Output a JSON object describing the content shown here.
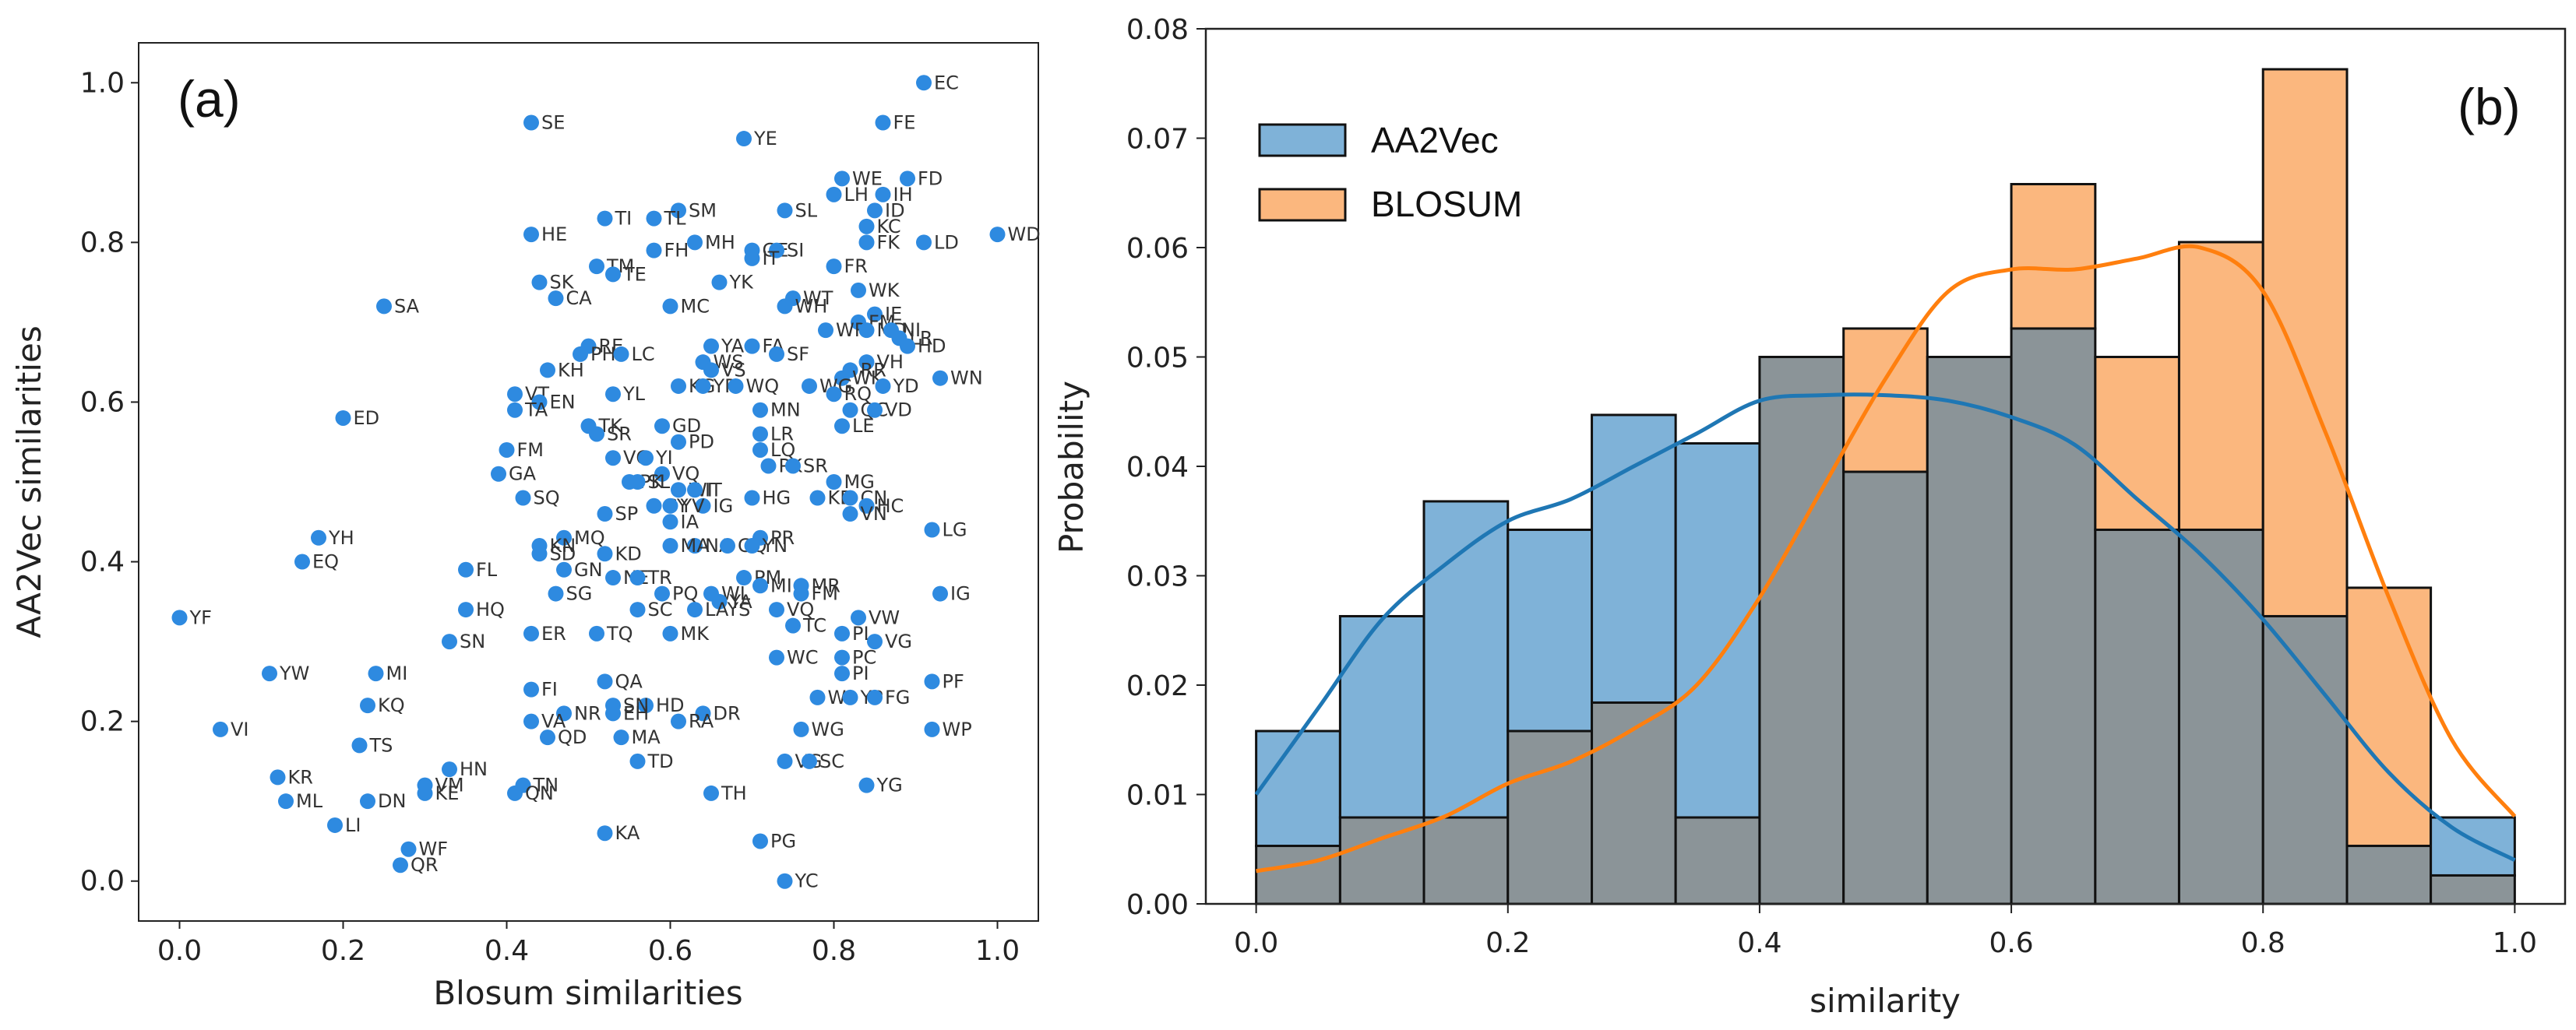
{
  "figure": {
    "panel_a_tag": "(a)",
    "panel_b_tag": "(b)"
  },
  "colors": {
    "scatter": "#2e8ae0",
    "aa2vec_fill": "#7fb2d8",
    "aa2vec_line": "#1f77b4",
    "blosum_fill": "#fbb77e",
    "blosum_line": "#ff7f0e",
    "overlap_fill": "#8b9498"
  },
  "chart_data": [
    {
      "type": "scatter",
      "title": "",
      "xlabel": "Blosum similarities",
      "ylabel": "AA2Vec similarities",
      "xlim": [
        -0.05,
        1.05
      ],
      "ylim": [
        -0.05,
        1.05
      ],
      "xticks": [
        "0.0",
        "0.2",
        "0.4",
        "0.6",
        "0.8",
        "1.0"
      ],
      "yticks": [
        "0.0",
        "0.2",
        "0.4",
        "0.6",
        "0.8",
        "1.0"
      ],
      "points": [
        {
          "label": "EC",
          "x": 0.91,
          "y": 1.0
        },
        {
          "label": "SE",
          "x": 0.43,
          "y": 0.95
        },
        {
          "label": "FE",
          "x": 0.86,
          "y": 0.95
        },
        {
          "label": "YE",
          "x": 0.69,
          "y": 0.93
        },
        {
          "label": "WE",
          "x": 0.81,
          "y": 0.88
        },
        {
          "label": "FD",
          "x": 0.89,
          "y": 0.88
        },
        {
          "label": "LH",
          "x": 0.8,
          "y": 0.86
        },
        {
          "label": "IH",
          "x": 0.86,
          "y": 0.86
        },
        {
          "label": "SL",
          "x": 0.74,
          "y": 0.84
        },
        {
          "label": "SM",
          "x": 0.61,
          "y": 0.84
        },
        {
          "label": "TI",
          "x": 0.52,
          "y": 0.83
        },
        {
          "label": "TL",
          "x": 0.58,
          "y": 0.83
        },
        {
          "label": "ID",
          "x": 0.85,
          "y": 0.84
        },
        {
          "label": "KC",
          "x": 0.84,
          "y": 0.82
        },
        {
          "label": "HE",
          "x": 0.43,
          "y": 0.81
        },
        {
          "label": "MH",
          "x": 0.63,
          "y": 0.8
        },
        {
          "label": "FK",
          "x": 0.84,
          "y": 0.8
        },
        {
          "label": "LD",
          "x": 0.91,
          "y": 0.8
        },
        {
          "label": "WD",
          "x": 1.0,
          "y": 0.81
        },
        {
          "label": "FH",
          "x": 0.58,
          "y": 0.79
        },
        {
          "label": "GE",
          "x": 0.7,
          "y": 0.79
        },
        {
          "label": "SI",
          "x": 0.73,
          "y": 0.79
        },
        {
          "label": "IT",
          "x": 0.7,
          "y": 0.78
        },
        {
          "label": "FR",
          "x": 0.8,
          "y": 0.77
        },
        {
          "label": "TM",
          "x": 0.51,
          "y": 0.77
        },
        {
          "label": "TE",
          "x": 0.53,
          "y": 0.76
        },
        {
          "label": "SK",
          "x": 0.44,
          "y": 0.75
        },
        {
          "label": "YK",
          "x": 0.66,
          "y": 0.75
        },
        {
          "label": "CA",
          "x": 0.46,
          "y": 0.73
        },
        {
          "label": "WT",
          "x": 0.75,
          "y": 0.73
        },
        {
          "label": "WK",
          "x": 0.83,
          "y": 0.74
        },
        {
          "label": "MC",
          "x": 0.6,
          "y": 0.72
        },
        {
          "label": "WH",
          "x": 0.74,
          "y": 0.72
        },
        {
          "label": "SA",
          "x": 0.25,
          "y": 0.72
        },
        {
          "label": "IE",
          "x": 0.85,
          "y": 0.71
        },
        {
          "label": "FM",
          "x": 0.83,
          "y": 0.7
        },
        {
          "label": "WR",
          "x": 0.79,
          "y": 0.69
        },
        {
          "label": "MD",
          "x": 0.84,
          "y": 0.69
        },
        {
          "label": "NI",
          "x": 0.87,
          "y": 0.69
        },
        {
          "label": "LR",
          "x": 0.88,
          "y": 0.68
        },
        {
          "label": "HD",
          "x": 0.89,
          "y": 0.67
        },
        {
          "label": "RE",
          "x": 0.5,
          "y": 0.67
        },
        {
          "label": "YA",
          "x": 0.65,
          "y": 0.67
        },
        {
          "label": "FA",
          "x": 0.7,
          "y": 0.67
        },
        {
          "label": "SF",
          "x": 0.73,
          "y": 0.66
        },
        {
          "label": "PH",
          "x": 0.49,
          "y": 0.66
        },
        {
          "label": "LC",
          "x": 0.54,
          "y": 0.66
        },
        {
          "label": "WS",
          "x": 0.64,
          "y": 0.65
        },
        {
          "label": "VS",
          "x": 0.65,
          "y": 0.64
        },
        {
          "label": "KH",
          "x": 0.45,
          "y": 0.64
        },
        {
          "label": "VH",
          "x": 0.84,
          "y": 0.65
        },
        {
          "label": "WN",
          "x": 0.93,
          "y": 0.63
        },
        {
          "label": "RR",
          "x": 0.82,
          "y": 0.64
        },
        {
          "label": "WK",
          "x": 0.81,
          "y": 0.63
        },
        {
          "label": "YD",
          "x": 0.86,
          "y": 0.62
        },
        {
          "label": "KG",
          "x": 0.61,
          "y": 0.62
        },
        {
          "label": "YR",
          "x": 0.64,
          "y": 0.62
        },
        {
          "label": "WQ",
          "x": 0.68,
          "y": 0.62
        },
        {
          "label": "WG",
          "x": 0.77,
          "y": 0.62
        },
        {
          "label": "RQ",
          "x": 0.8,
          "y": 0.61
        },
        {
          "label": "YL",
          "x": 0.53,
          "y": 0.61
        },
        {
          "label": "VT",
          "x": 0.41,
          "y": 0.61
        },
        {
          "label": "EN",
          "x": 0.44,
          "y": 0.6
        },
        {
          "label": "TA",
          "x": 0.41,
          "y": 0.59
        },
        {
          "label": "MN",
          "x": 0.71,
          "y": 0.59
        },
        {
          "label": "QC",
          "x": 0.82,
          "y": 0.59
        },
        {
          "label": "VD",
          "x": 0.85,
          "y": 0.59
        },
        {
          "label": "ED",
          "x": 0.2,
          "y": 0.58
        },
        {
          "label": "LE",
          "x": 0.81,
          "y": 0.57
        },
        {
          "label": "TK",
          "x": 0.5,
          "y": 0.57
        },
        {
          "label": "GD",
          "x": 0.59,
          "y": 0.57
        },
        {
          "label": "SR",
          "x": 0.51,
          "y": 0.56
        },
        {
          "label": "LR",
          "x": 0.71,
          "y": 0.56
        },
        {
          "label": "PD",
          "x": 0.61,
          "y": 0.55
        },
        {
          "label": "LQ",
          "x": 0.71,
          "y": 0.54
        },
        {
          "label": "FM",
          "x": 0.4,
          "y": 0.54
        },
        {
          "label": "VC",
          "x": 0.53,
          "y": 0.53
        },
        {
          "label": "YI",
          "x": 0.57,
          "y": 0.53
        },
        {
          "label": "PK",
          "x": 0.72,
          "y": 0.52
        },
        {
          "label": "SR",
          "x": 0.75,
          "y": 0.52
        },
        {
          "label": "GA",
          "x": 0.39,
          "y": 0.51
        },
        {
          "label": "VQ",
          "x": 0.59,
          "y": 0.51
        },
        {
          "label": "PK",
          "x": 0.55,
          "y": 0.5
        },
        {
          "label": "SL",
          "x": 0.56,
          "y": 0.5
        },
        {
          "label": "MG",
          "x": 0.8,
          "y": 0.5
        },
        {
          "label": "WI",
          "x": 0.61,
          "y": 0.49
        },
        {
          "label": "IT",
          "x": 0.63,
          "y": 0.49
        },
        {
          "label": "KE",
          "x": 0.78,
          "y": 0.48
        },
        {
          "label": "CN",
          "x": 0.82,
          "y": 0.48
        },
        {
          "label": "SQ",
          "x": 0.42,
          "y": 0.48
        },
        {
          "label": "HG",
          "x": 0.7,
          "y": 0.48
        },
        {
          "label": "CY",
          "x": 0.58,
          "y": 0.47
        },
        {
          "label": "IG",
          "x": 0.64,
          "y": 0.47
        },
        {
          "label": "HC",
          "x": 0.84,
          "y": 0.47
        },
        {
          "label": "YV",
          "x": 0.6,
          "y": 0.47
        },
        {
          "label": "VN",
          "x": 0.82,
          "y": 0.46
        },
        {
          "label": "SP",
          "x": 0.52,
          "y": 0.46
        },
        {
          "label": "IA",
          "x": 0.6,
          "y": 0.45
        },
        {
          "label": "LG",
          "x": 0.92,
          "y": 0.44
        },
        {
          "label": "MQ",
          "x": 0.47,
          "y": 0.43
        },
        {
          "label": "NA",
          "x": 0.63,
          "y": 0.42
        },
        {
          "label": "GQ",
          "x": 0.67,
          "y": 0.42
        },
        {
          "label": "PR",
          "x": 0.71,
          "y": 0.43
        },
        {
          "label": "YN",
          "x": 0.7,
          "y": 0.42
        },
        {
          "label": "KN",
          "x": 0.44,
          "y": 0.42
        },
        {
          "label": "MA",
          "x": 0.6,
          "y": 0.42
        },
        {
          "label": "KD",
          "x": 0.52,
          "y": 0.41
        },
        {
          "label": "SD",
          "x": 0.44,
          "y": 0.41
        },
        {
          "label": "YH",
          "x": 0.17,
          "y": 0.43
        },
        {
          "label": "EQ",
          "x": 0.15,
          "y": 0.4
        },
        {
          "label": "GN",
          "x": 0.47,
          "y": 0.39
        },
        {
          "label": "FL",
          "x": 0.35,
          "y": 0.39
        },
        {
          "label": "NE",
          "x": 0.53,
          "y": 0.38
        },
        {
          "label": "TR",
          "x": 0.56,
          "y": 0.38
        },
        {
          "label": "PM",
          "x": 0.69,
          "y": 0.38
        },
        {
          "label": "MI",
          "x": 0.71,
          "y": 0.37
        },
        {
          "label": "MR",
          "x": 0.76,
          "y": 0.37
        },
        {
          "label": "FM",
          "x": 0.76,
          "y": 0.36
        },
        {
          "label": "SG",
          "x": 0.46,
          "y": 0.36
        },
        {
          "label": "PQ",
          "x": 0.59,
          "y": 0.36
        },
        {
          "label": "WL",
          "x": 0.65,
          "y": 0.36
        },
        {
          "label": "IG",
          "x": 0.93,
          "y": 0.36
        },
        {
          "label": "YA",
          "x": 0.66,
          "y": 0.35
        },
        {
          "label": "LAYS",
          "x": 0.63,
          "y": 0.34
        },
        {
          "label": "HQ",
          "x": 0.35,
          "y": 0.34
        },
        {
          "label": "SC",
          "x": 0.56,
          "y": 0.34
        },
        {
          "label": "VQ",
          "x": 0.73,
          "y": 0.34
        },
        {
          "label": "VW",
          "x": 0.83,
          "y": 0.33
        },
        {
          "label": "YF",
          "x": 0.0,
          "y": 0.33
        },
        {
          "label": "TC",
          "x": 0.75,
          "y": 0.32
        },
        {
          "label": "PL",
          "x": 0.81,
          "y": 0.31
        },
        {
          "label": "ER",
          "x": 0.43,
          "y": 0.31
        },
        {
          "label": "TQ",
          "x": 0.51,
          "y": 0.31
        },
        {
          "label": "MK",
          "x": 0.6,
          "y": 0.31
        },
        {
          "label": "SN",
          "x": 0.33,
          "y": 0.3
        },
        {
          "label": "VG",
          "x": 0.85,
          "y": 0.3
        },
        {
          "label": "WC",
          "x": 0.73,
          "y": 0.28
        },
        {
          "label": "PC",
          "x": 0.81,
          "y": 0.28
        },
        {
          "label": "PI",
          "x": 0.81,
          "y": 0.26
        },
        {
          "label": "YW",
          "x": 0.11,
          "y": 0.26
        },
        {
          "label": "MI",
          "x": 0.24,
          "y": 0.26
        },
        {
          "label": "PF",
          "x": 0.92,
          "y": 0.25
        },
        {
          "label": "QA",
          "x": 0.52,
          "y": 0.25
        },
        {
          "label": "FI",
          "x": 0.43,
          "y": 0.24
        },
        {
          "label": "WI",
          "x": 0.78,
          "y": 0.23
        },
        {
          "label": "YP",
          "x": 0.82,
          "y": 0.23
        },
        {
          "label": "FG",
          "x": 0.85,
          "y": 0.23
        },
        {
          "label": "KQ",
          "x": 0.23,
          "y": 0.22
        },
        {
          "label": "HD",
          "x": 0.57,
          "y": 0.22
        },
        {
          "label": "SN",
          "x": 0.53,
          "y": 0.22
        },
        {
          "label": "EH",
          "x": 0.53,
          "y": 0.21
        },
        {
          "label": "DR",
          "x": 0.64,
          "y": 0.21
        },
        {
          "label": "NR",
          "x": 0.47,
          "y": 0.21
        },
        {
          "label": "VA",
          "x": 0.43,
          "y": 0.2
        },
        {
          "label": "RA",
          "x": 0.61,
          "y": 0.2
        },
        {
          "label": "VI",
          "x": 0.05,
          "y": 0.19
        },
        {
          "label": "WG",
          "x": 0.76,
          "y": 0.19
        },
        {
          "label": "WP",
          "x": 0.92,
          "y": 0.19
        },
        {
          "label": "QD",
          "x": 0.45,
          "y": 0.18
        },
        {
          "label": "MA",
          "x": 0.54,
          "y": 0.18
        },
        {
          "label": "TS",
          "x": 0.22,
          "y": 0.17
        },
        {
          "label": "TD",
          "x": 0.56,
          "y": 0.15
        },
        {
          "label": "VG",
          "x": 0.74,
          "y": 0.15
        },
        {
          "label": "SC",
          "x": 0.77,
          "y": 0.15
        },
        {
          "label": "HN",
          "x": 0.33,
          "y": 0.14
        },
        {
          "label": "KR",
          "x": 0.12,
          "y": 0.13
        },
        {
          "label": "TN",
          "x": 0.42,
          "y": 0.12
        },
        {
          "label": "YG",
          "x": 0.84,
          "y": 0.12
        },
        {
          "label": "VM",
          "x": 0.3,
          "y": 0.12
        },
        {
          "label": "TH",
          "x": 0.65,
          "y": 0.11
        },
        {
          "label": "QN",
          "x": 0.41,
          "y": 0.11
        },
        {
          "label": "KE",
          "x": 0.3,
          "y": 0.11
        },
        {
          "label": "DN",
          "x": 0.23,
          "y": 0.1
        },
        {
          "label": "ML",
          "x": 0.13,
          "y": 0.1
        },
        {
          "label": "LI",
          "x": 0.19,
          "y": 0.07
        },
        {
          "label": "KA",
          "x": 0.52,
          "y": 0.06
        },
        {
          "label": "PG",
          "x": 0.71,
          "y": 0.05
        },
        {
          "label": "WF",
          "x": 0.28,
          "y": 0.04
        },
        {
          "label": "QR",
          "x": 0.27,
          "y": 0.02
        },
        {
          "label": "YC",
          "x": 0.74,
          "y": 0.0
        }
      ]
    },
    {
      "type": "histogram",
      "title": "",
      "xlabel": "similarity",
      "ylabel": "Probability",
      "xlim": [
        -0.04,
        1.04
      ],
      "ylim": [
        0.0,
        0.08
      ],
      "xticks": [
        "0.0",
        "0.2",
        "0.4",
        "0.6",
        "0.8",
        "1.0"
      ],
      "yticks": [
        "0.00",
        "0.01",
        "0.02",
        "0.03",
        "0.04",
        "0.05",
        "0.06",
        "0.07",
        "0.08"
      ],
      "bin_edges": [
        0.0,
        0.0667,
        0.1333,
        0.2,
        0.2667,
        0.3333,
        0.4,
        0.4667,
        0.5333,
        0.6,
        0.6667,
        0.7333,
        0.8,
        0.8667,
        0.9333,
        1.0
      ],
      "series": [
        {
          "name": "AA2Vec",
          "values": [
            0.0158,
            0.0263,
            0.0368,
            0.0342,
            0.0447,
            0.0421,
            0.05,
            0.0395,
            0.05,
            0.0526,
            0.0342,
            0.0342,
            0.0263,
            0.0053,
            0.0079
          ],
          "kde_x": [
            0.0,
            0.05,
            0.1,
            0.15,
            0.2,
            0.25,
            0.3,
            0.35,
            0.4,
            0.45,
            0.5,
            0.55,
            0.6,
            0.65,
            0.7,
            0.75,
            0.8,
            0.85,
            0.9,
            0.95,
            1.0
          ],
          "kde_y": [
            0.01,
            0.018,
            0.026,
            0.031,
            0.035,
            0.037,
            0.04,
            0.043,
            0.046,
            0.0465,
            0.0465,
            0.046,
            0.0445,
            0.042,
            0.037,
            0.032,
            0.026,
            0.019,
            0.012,
            0.007,
            0.004
          ]
        },
        {
          "name": "BLOSUM",
          "values": [
            0.0053,
            0.0079,
            0.0079,
            0.0158,
            0.0184,
            0.0079,
            0.05,
            0.0526,
            0.05,
            0.0658,
            0.05,
            0.0605,
            0.0763,
            0.0289,
            0.0026
          ],
          "kde_x": [
            0.0,
            0.05,
            0.1,
            0.15,
            0.2,
            0.25,
            0.3,
            0.35,
            0.4,
            0.45,
            0.5,
            0.55,
            0.6,
            0.65,
            0.7,
            0.75,
            0.8,
            0.85,
            0.9,
            0.95,
            1.0
          ],
          "kde_y": [
            0.003,
            0.004,
            0.006,
            0.008,
            0.011,
            0.013,
            0.016,
            0.02,
            0.028,
            0.038,
            0.048,
            0.056,
            0.058,
            0.058,
            0.059,
            0.06,
            0.056,
            0.043,
            0.028,
            0.015,
            0.008
          ]
        }
      ]
    }
  ]
}
